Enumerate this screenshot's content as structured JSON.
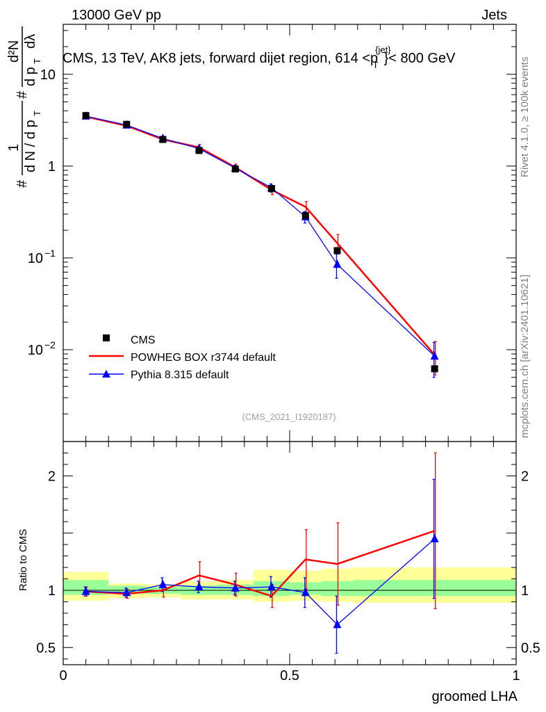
{
  "header": {
    "left": "13000 GeV pp",
    "right": "Jets"
  },
  "side_labels": {
    "rivet": "Rivet 4.1.0, ≥ 100k events",
    "mcplots": "mcplots.cern.ch [arXiv:2401.10621]"
  },
  "watermark": "(CMS_2021_I1920187)",
  "colors": {
    "cms": "#000000",
    "powheg": "#ff0000",
    "pythia": "#0000ff",
    "band_inner": "#99ff99",
    "band_outer": "#ffff99"
  },
  "chart_data": [
    {
      "type": "line",
      "panel": "main",
      "title": "CMS, 13 TeV, AK8 jets, forward dijet region, 614 <p_T^{jet}< 800 GeV",
      "ylabel_parts": {
        "n1": "#",
        "n2": "1",
        "d1": "d N / d p",
        "d1sub": "T",
        "n3": "#",
        "n4": "d²N",
        "d2": "d p",
        "d2sub": "T",
        "d3": "dλ"
      },
      "xlabel": "groomed LHA",
      "xlim": [
        0,
        1
      ],
      "ylim": [
        0.001,
        35
      ],
      "yscale": "log",
      "y_ticks": [
        {
          "value": 10,
          "label": "10"
        },
        {
          "value": 1,
          "label": "1"
        },
        {
          "value": 0.1,
          "label": "10",
          "exp": "−1"
        },
        {
          "value": 0.01,
          "label": "10",
          "exp": "−2"
        }
      ],
      "series": [
        {
          "name": "CMS",
          "style": "markers",
          "x": [
            0.05,
            0.14,
            0.22,
            0.3,
            0.38,
            0.46,
            0.535,
            0.605,
            0.82
          ],
          "y": [
            3.55,
            2.85,
            1.95,
            1.48,
            0.93,
            0.57,
            0.29,
            0.12,
            0.0062
          ]
        },
        {
          "name": "POWHEG BOX r3744 default",
          "style": "line",
          "x": [
            0.05,
            0.14,
            0.22,
            0.3,
            0.38,
            0.46,
            0.535,
            0.605,
            0.82
          ],
          "y": [
            3.45,
            2.75,
            1.95,
            1.6,
            0.97,
            0.55,
            0.36,
            0.145,
            0.0088
          ],
          "yerr": [
            0.08,
            0.07,
            0.06,
            0.12,
            0.08,
            0.06,
            0.05,
            0.035,
            0.0035
          ]
        },
        {
          "name": "Pythia 8.315 default",
          "style": "line-markers",
          "x": [
            0.05,
            0.14,
            0.22,
            0.3,
            0.38,
            0.46,
            0.535,
            0.605,
            0.82
          ],
          "y": [
            3.5,
            2.8,
            2.0,
            1.55,
            0.95,
            0.58,
            0.28,
            0.085,
            0.0085
          ],
          "yerr": [
            0.08,
            0.07,
            0.08,
            0.1,
            0.07,
            0.06,
            0.04,
            0.025,
            0.0035
          ]
        }
      ],
      "legend": [
        "CMS",
        "POWHEG BOX r3744 default",
        "Pythia 8.315 default"
      ]
    },
    {
      "type": "line",
      "panel": "ratio",
      "ylabel": "Ratio to CMS",
      "xlabel": "groomed LHA",
      "xlim": [
        0,
        1
      ],
      "ylim": [
        0.35,
        2.3
      ],
      "y_ticks": [
        {
          "value": 2,
          "label": "2"
        },
        {
          "value": 1,
          "label": "1"
        },
        {
          "value": 0.5,
          "label": "0.5"
        }
      ],
      "x_ticks": [
        {
          "value": 0,
          "label": "0"
        },
        {
          "value": 0.5,
          "label": "0.5"
        },
        {
          "value": 1,
          "label": "1"
        }
      ],
      "bins": [
        0,
        0.1,
        0.18,
        0.26,
        0.34,
        0.42,
        0.5,
        0.57,
        0.64,
        1.0
      ],
      "band_inner": [
        [
          0.96,
          1.09
        ],
        [
          0.97,
          1.04
        ],
        [
          0.97,
          1.03
        ],
        [
          0.96,
          1.04
        ],
        [
          0.96,
          1.05
        ],
        [
          0.95,
          1.08
        ],
        [
          0.96,
          1.07
        ],
        [
          0.95,
          1.08
        ],
        [
          0.95,
          1.09
        ]
      ],
      "band_outer": [
        [
          0.91,
          1.16
        ],
        [
          0.93,
          1.06
        ],
        [
          0.94,
          1.05
        ],
        [
          0.92,
          1.08
        ],
        [
          0.92,
          1.09
        ],
        [
          0.9,
          1.18
        ],
        [
          0.91,
          1.17
        ],
        [
          0.9,
          1.19
        ],
        [
          0.89,
          1.2
        ]
      ],
      "series": [
        {
          "name": "POWHEG BOX r3744 default",
          "x": [
            0.05,
            0.14,
            0.22,
            0.3,
            0.38,
            0.46,
            0.535,
            0.605,
            0.82
          ],
          "y": [
            0.99,
            0.97,
            1.0,
            1.13,
            1.05,
            0.95,
            1.27,
            1.23,
            1.52
          ],
          "yerr": [
            0.04,
            0.04,
            0.06,
            0.12,
            0.1,
            0.1,
            0.26,
            0.36,
            0.68
          ]
        },
        {
          "name": "Pythia 8.315 default",
          "x": [
            0.05,
            0.14,
            0.22,
            0.3,
            0.38,
            0.46,
            0.535,
            0.605,
            0.82
          ],
          "y": [
            0.99,
            0.98,
            1.05,
            1.03,
            1.02,
            1.03,
            0.98,
            0.7,
            1.45
          ],
          "yerr": [
            0.04,
            0.04,
            0.06,
            0.05,
            0.06,
            0.09,
            0.13,
            0.25,
            0.52
          ]
        }
      ]
    }
  ]
}
